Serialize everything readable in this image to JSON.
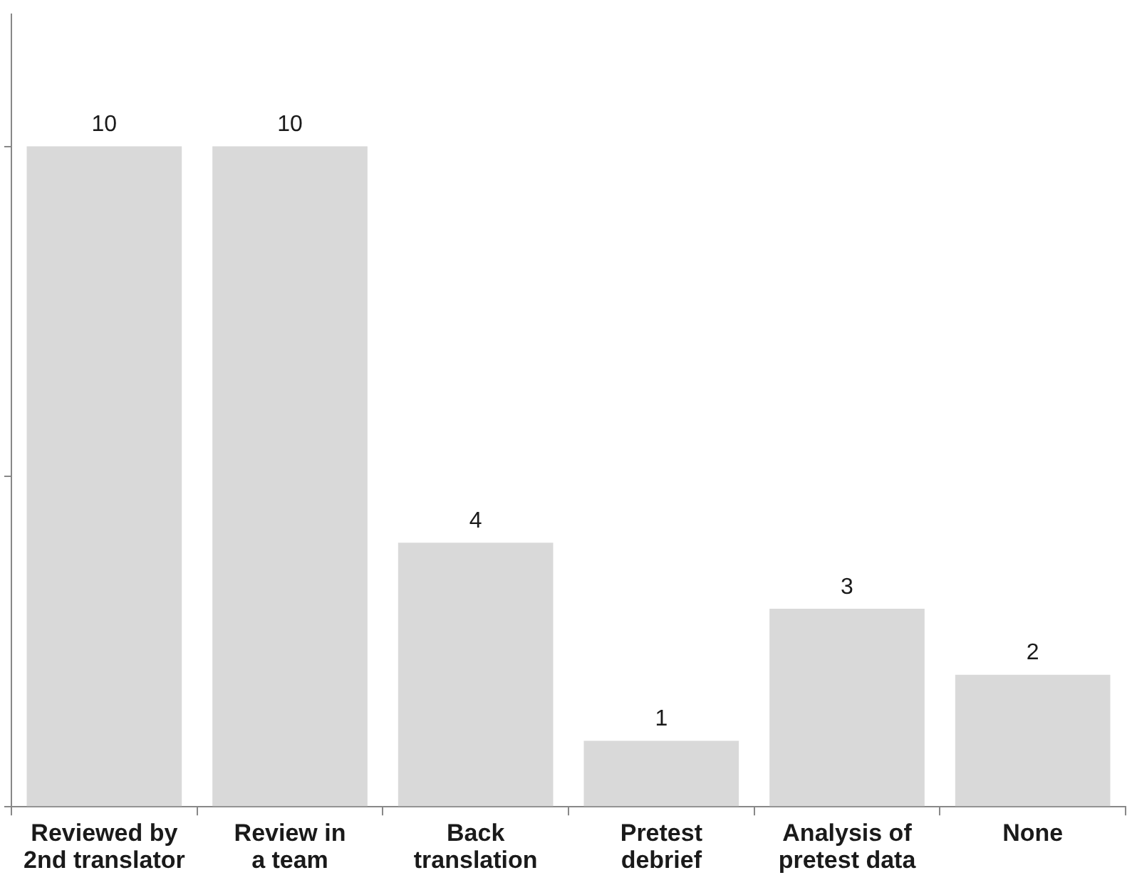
{
  "chart_data": {
    "type": "bar",
    "categories": [
      "Reviewed by 2nd translator",
      "Review in a team",
      "Back translation",
      "Pretest debrief",
      "Analysis of pretest data",
      "None"
    ],
    "values": [
      10,
      10,
      4,
      1,
      3,
      2
    ],
    "color": "#d9d9d9",
    "ylim": [
      0,
      12
    ],
    "yticks": [
      {
        "value": 0,
        "label": null
      },
      {
        "value": 5,
        "label": null
      },
      {
        "value": 10,
        "label": null
      }
    ],
    "tick_labels": "x",
    "grid": false,
    "legend": false,
    "data_labels": true
  }
}
